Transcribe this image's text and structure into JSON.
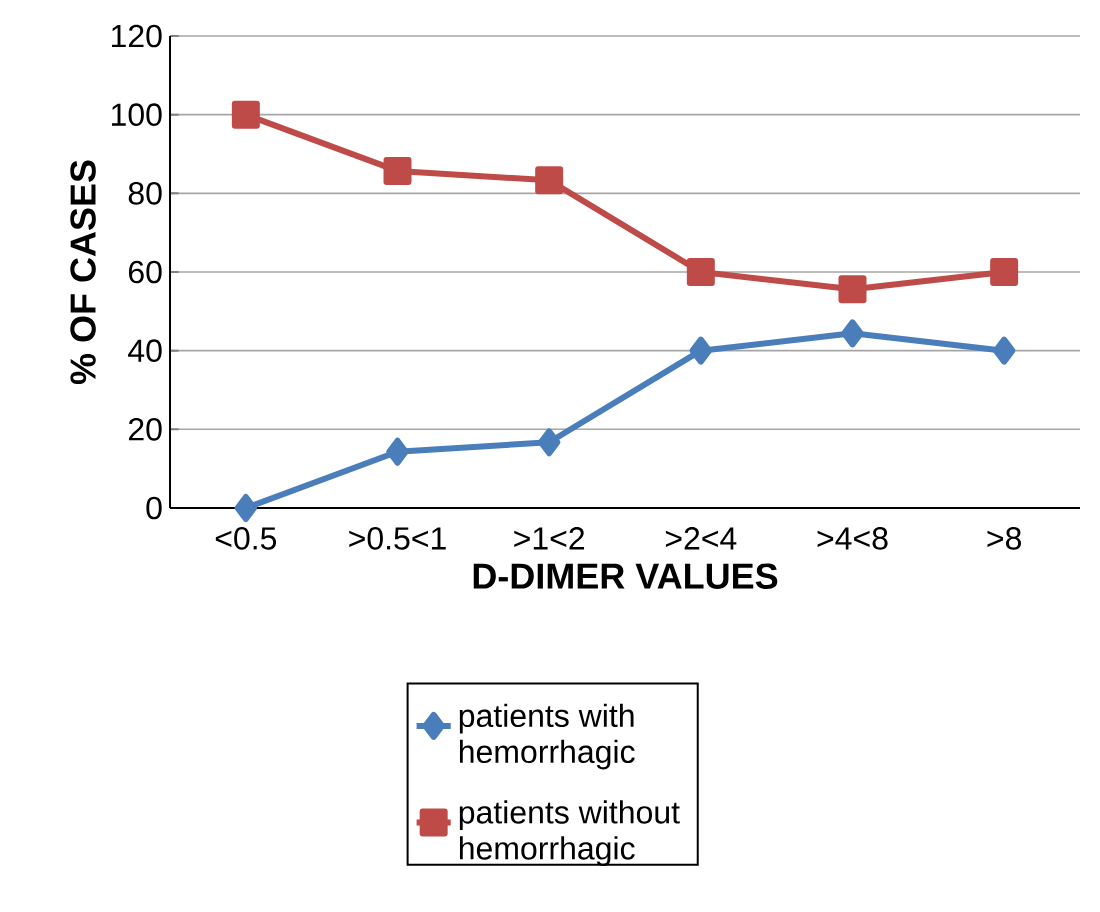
{
  "chart_data": {
    "type": "line",
    "xlabel": "D-DIMER VALUES",
    "ylabel": "% OF CASES",
    "categories": [
      "<0.5",
      ">0.5<1",
      ">1<2",
      ">2<4",
      ">4<8",
      ">8"
    ],
    "series": [
      {
        "name": "patients with hemorrhagic",
        "color": "#4a7ebb",
        "marker": "diamond",
        "values": [
          0,
          14.3,
          16.7,
          40,
          44.4,
          40
        ]
      },
      {
        "name": "patients without hemorrhagic",
        "color": "#be4b48",
        "marker": "square",
        "values": [
          100,
          85.7,
          83.3,
          60,
          55.6,
          60
        ]
      }
    ],
    "ylim": [
      0,
      120
    ],
    "yticks": [
      0,
      20,
      40,
      60,
      80,
      100,
      120
    ],
    "grid": "y",
    "legend": "bottom",
    "line_style": "solid"
  }
}
